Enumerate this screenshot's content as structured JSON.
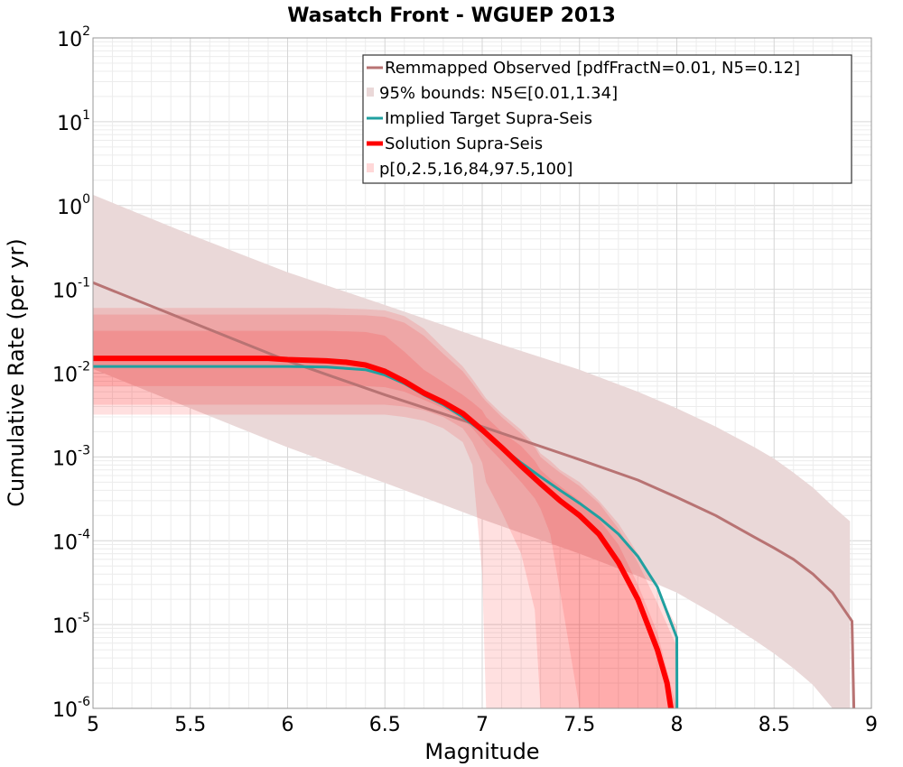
{
  "chart_data": {
    "type": "line",
    "title": "Wasatch Front - WGUEP 2013",
    "xlabel": "Magnitude",
    "ylabel": "Cumulative Rate (per yr)",
    "xlim": [
      5,
      9
    ],
    "ylim": [
      1e-06,
      100
    ],
    "yscale": "log",
    "x_ticks": [
      "5",
      "5.5",
      "6",
      "6.5",
      "7",
      "7.5",
      "8",
      "8.5",
      "9"
    ],
    "y_ticks": [
      {
        "base": "10",
        "exp": "-6"
      },
      {
        "base": "10",
        "exp": "-5"
      },
      {
        "base": "10",
        "exp": "-4"
      },
      {
        "base": "10",
        "exp": "-3"
      },
      {
        "base": "10",
        "exp": "-2"
      },
      {
        "base": "10",
        "exp": "-1"
      },
      {
        "base": "10",
        "exp": "0"
      },
      {
        "base": "10",
        "exp": "1"
      },
      {
        "base": "10",
        "exp": "2"
      }
    ],
    "grid": true,
    "legend_position": "top-right",
    "series": [
      {
        "name": "Remmapped Observed [pdfFractN=0.01, N5=0.12]",
        "color": "#b87373",
        "style": "line",
        "x": [
          5.0,
          5.5,
          6.0,
          6.5,
          7.0,
          7.5,
          7.8,
          8.0,
          8.2,
          8.4,
          8.5,
          8.6,
          8.7,
          8.8,
          8.9,
          8.91
        ],
        "y": [
          0.12,
          0.041,
          0.014,
          0.0055,
          0.0023,
          0.00093,
          0.00053,
          0.00033,
          0.0002,
          0.00011,
          8.2e-05,
          6e-05,
          4e-05,
          2.4e-05,
          1.1e-05,
          1e-06
        ]
      },
      {
        "name": "95% bounds: N5∈[0.01,1.34]",
        "color": "#ead8d8",
        "style": "band",
        "x": [
          5.0,
          5.5,
          6.0,
          6.5,
          7.0,
          7.5,
          7.8,
          8.0,
          8.2,
          8.4,
          8.5,
          8.6,
          8.7,
          8.8,
          8.89
        ],
        "upper": [
          1.34,
          0.45,
          0.16,
          0.065,
          0.026,
          0.011,
          0.006,
          0.0038,
          0.0023,
          0.0013,
          0.00095,
          0.00065,
          0.00043,
          0.00026,
          0.00017
        ],
        "lower": [
          0.0112,
          0.0038,
          0.0013,
          0.00049,
          0.00018,
          7e-05,
          3.8e-05,
          2.4e-05,
          1.3e-05,
          6.5e-06,
          4.5e-06,
          3e-06,
          1.9e-06,
          1e-06,
          1e-06
        ]
      },
      {
        "name": "Implied Target Supra-Seis",
        "color": "#20a0a0",
        "style": "line",
        "x": [
          5.0,
          5.5,
          6.0,
          6.2,
          6.4,
          6.5,
          6.6,
          6.7,
          6.8,
          6.9,
          7.0,
          7.1,
          7.2,
          7.3,
          7.4,
          7.5,
          7.6,
          7.7,
          7.8,
          7.9,
          8.0,
          8.001
        ],
        "y": [
          0.012,
          0.012,
          0.012,
          0.0118,
          0.011,
          0.0095,
          0.0075,
          0.0055,
          0.0042,
          0.003,
          0.002,
          0.0013,
          0.00085,
          0.00058,
          0.0004,
          0.00028,
          0.00019,
          0.00012,
          6.5e-05,
          2.8e-05,
          7e-06,
          1e-06
        ]
      },
      {
        "name": "Solution Supra-Seis",
        "color": "#ff0000",
        "style": "line",
        "x": [
          5.0,
          5.5,
          5.9,
          6.0,
          6.2,
          6.3,
          6.4,
          6.5,
          6.6,
          6.7,
          6.8,
          6.9,
          7.0,
          7.1,
          7.2,
          7.3,
          7.4,
          7.5,
          7.6,
          7.7,
          7.8,
          7.9,
          7.95,
          7.97
        ],
        "y": [
          0.015,
          0.015,
          0.015,
          0.0145,
          0.014,
          0.0135,
          0.0125,
          0.0105,
          0.008,
          0.0058,
          0.0045,
          0.0033,
          0.0021,
          0.0013,
          0.00078,
          0.00048,
          0.0003,
          0.0002,
          0.00012,
          5.5e-05,
          2e-05,
          5e-06,
          2e-06,
          1e-06
        ]
      },
      {
        "name": "p[0,2.5,16,84,97.5,100]",
        "color": "#ffd8d8",
        "style": "band"
      }
    ],
    "percentile_bands": {
      "x": [
        5.0,
        5.5,
        6.0,
        6.2,
        6.4,
        6.5,
        6.6,
        6.7,
        6.8,
        6.9,
        6.95,
        7.0,
        7.02,
        7.1,
        7.2,
        7.27,
        7.3,
        7.35,
        7.4,
        7.5,
        7.6,
        7.7,
        7.8,
        7.9,
        8.0
      ],
      "p0": [
        0.0032,
        0.0032,
        0.0032,
        0.0032,
        0.0032,
        0.0032,
        0.003,
        0.0027,
        0.0022,
        0.0015,
        0.0008,
        4e-05,
        1e-06,
        1e-06,
        1e-06,
        1e-06,
        1e-06,
        1e-06,
        1e-06,
        1e-06,
        1e-06,
        1e-06,
        1e-06,
        1e-06,
        1e-06
      ],
      "p2_5": [
        0.0042,
        0.0042,
        0.0042,
        0.0042,
        0.0042,
        0.0042,
        0.004,
        0.0036,
        0.003,
        0.0022,
        0.0015,
        0.00085,
        0.0005,
        0.00022,
        7e-05,
        1.5e-05,
        1e-06,
        1e-06,
        1e-06,
        1e-06,
        1e-06,
        1e-06,
        1e-06,
        1e-06,
        1e-06
      ],
      "p16": [
        0.007,
        0.007,
        0.007,
        0.007,
        0.007,
        0.0068,
        0.006,
        0.0048,
        0.0038,
        0.0028,
        0.0022,
        0.0016,
        0.0014,
        0.0009,
        0.0005,
        0.00032,
        0.00024,
        0.00012,
        2.5e-05,
        1e-06,
        1e-06,
        1e-06,
        1e-06,
        1e-06,
        1e-06
      ],
      "p84": [
        0.032,
        0.032,
        0.032,
        0.032,
        0.031,
        0.028,
        0.018,
        0.011,
        0.0078,
        0.0055,
        0.0045,
        0.0036,
        0.003,
        0.002,
        0.00135,
        0.0009,
        0.0007,
        0.00055,
        0.00045,
        0.0003,
        0.00018,
        9e-05,
        3e-05,
        8e-06,
        1e-06
      ],
      "p97_5": [
        0.05,
        0.05,
        0.05,
        0.05,
        0.049,
        0.047,
        0.04,
        0.028,
        0.017,
        0.0105,
        0.0075,
        0.0052,
        0.0046,
        0.003,
        0.0019,
        0.0013,
        0.001,
        0.0008,
        0.00065,
        0.00045,
        0.00028,
        0.00014,
        5.5e-05,
        1.8e-05,
        5.5e-06
      ],
      "p100": [
        0.06,
        0.06,
        0.06,
        0.06,
        0.058,
        0.056,
        0.048,
        0.034,
        0.02,
        0.012,
        0.0085,
        0.0058,
        0.005,
        0.0033,
        0.0021,
        0.0014,
        0.0011,
        0.0009,
        0.0007,
        0.0005,
        0.0003,
        0.00016,
        7e-05,
        2.5e-05,
        9.5e-06
      ]
    }
  }
}
